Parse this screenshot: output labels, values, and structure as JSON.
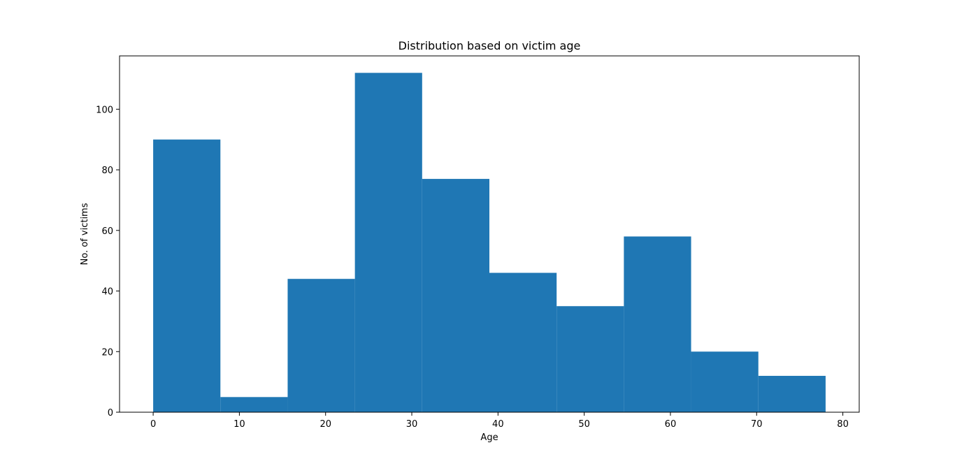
{
  "chart_data": {
    "type": "bar",
    "title": "Distribution based on victim age",
    "xlabel": "Age",
    "ylabel": "No. of victims",
    "bins": [
      {
        "x0": 0.0,
        "x1": 7.8,
        "value": 90
      },
      {
        "x0": 7.8,
        "x1": 15.6,
        "value": 5
      },
      {
        "x0": 15.6,
        "x1": 23.4,
        "value": 44
      },
      {
        "x0": 23.4,
        "x1": 31.2,
        "value": 112
      },
      {
        "x0": 31.2,
        "x1": 39.0,
        "value": 77
      },
      {
        "x0": 39.0,
        "x1": 46.8,
        "value": 46
      },
      {
        "x0": 46.8,
        "x1": 54.6,
        "value": 35
      },
      {
        "x0": 54.6,
        "x1": 62.4,
        "value": 58
      },
      {
        "x0": 62.4,
        "x1": 70.2,
        "value": 20
      },
      {
        "x0": 70.2,
        "x1": 78.0,
        "value": 12
      }
    ],
    "xlim": [
      -3.9,
      81.9
    ],
    "ylim": [
      0,
      117.6
    ],
    "xticks": [
      0,
      10,
      20,
      30,
      40,
      50,
      60,
      70,
      80
    ],
    "yticks": [
      0,
      20,
      40,
      60,
      80,
      100
    ],
    "bar_color": "#1f77b4",
    "grid": false,
    "legend": false
  }
}
